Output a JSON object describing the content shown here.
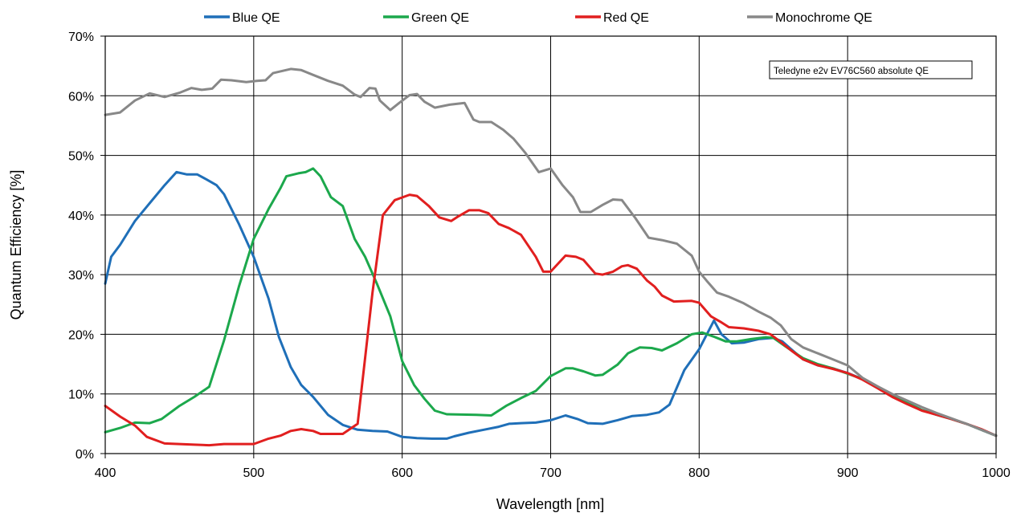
{
  "chart_data": {
    "type": "line",
    "xlabel": "Wavelength [nm]",
    "ylabel": "Quantum Efficiency [%]",
    "xlim": [
      400,
      1000
    ],
    "ylim": [
      0,
      70
    ],
    "x_ticks": [
      400,
      500,
      600,
      700,
      800,
      900,
      1000
    ],
    "y_ticks": [
      0,
      10,
      20,
      30,
      40,
      50,
      60,
      70
    ],
    "y_tick_labels": [
      "0%",
      "10%",
      "20%",
      "30%",
      "40%",
      "50%",
      "60%",
      "70%"
    ],
    "grid": true,
    "legend_position": "top",
    "annotation": "Teledyne e2v EV76C560 absolute QE",
    "series": [
      {
        "name": "Blue QE",
        "color": "#1f6fb8",
        "points": [
          [
            400,
            28.5
          ],
          [
            404,
            33
          ],
          [
            410,
            35
          ],
          [
            420,
            39
          ],
          [
            430,
            42
          ],
          [
            440,
            45
          ],
          [
            448,
            47.2
          ],
          [
            455,
            46.8
          ],
          [
            462,
            46.8
          ],
          [
            468,
            46
          ],
          [
            475,
            45
          ],
          [
            480,
            43.5
          ],
          [
            490,
            38.5
          ],
          [
            500,
            33
          ],
          [
            510,
            26
          ],
          [
            517,
            19.5
          ],
          [
            525,
            14.5
          ],
          [
            532,
            11.5
          ],
          [
            540,
            9.5
          ],
          [
            550,
            6.5
          ],
          [
            560,
            4.8
          ],
          [
            570,
            4
          ],
          [
            580,
            3.8
          ],
          [
            590,
            3.7
          ],
          [
            600,
            2.8
          ],
          [
            610,
            2.6
          ],
          [
            620,
            2.5
          ],
          [
            630,
            2.5
          ],
          [
            635,
            2.9
          ],
          [
            645,
            3.5
          ],
          [
            655,
            4
          ],
          [
            665,
            4.5
          ],
          [
            672,
            5
          ],
          [
            680,
            5.1
          ],
          [
            690,
            5.2
          ],
          [
            700,
            5.6
          ],
          [
            710,
            6.4
          ],
          [
            718,
            5.8
          ],
          [
            725,
            5.1
          ],
          [
            735,
            5
          ],
          [
            745,
            5.6
          ],
          [
            755,
            6.3
          ],
          [
            765,
            6.5
          ],
          [
            773,
            6.9
          ],
          [
            780,
            8.2
          ],
          [
            790,
            14
          ],
          [
            800,
            17.5
          ],
          [
            810,
            22.3
          ],
          [
            815,
            20
          ],
          [
            822,
            18.5
          ],
          [
            830,
            18.6
          ],
          [
            840,
            19.2
          ],
          [
            850,
            19.4
          ],
          [
            856,
            18.8
          ],
          [
            862,
            17.5
          ],
          [
            870,
            15.8
          ],
          [
            880,
            14.8
          ],
          [
            890,
            14.3
          ],
          [
            900,
            13.5
          ],
          [
            910,
            12.5
          ],
          [
            920,
            11.2
          ],
          [
            930,
            9.8
          ],
          [
            940,
            8.5
          ],
          [
            950,
            7.3
          ],
          [
            960,
            6.5
          ],
          [
            970,
            5.8
          ],
          [
            980,
            5
          ],
          [
            990,
            4
          ],
          [
            1000,
            3
          ]
        ]
      },
      {
        "name": "Green QE",
        "color": "#1ca84c",
        "points": [
          [
            400,
            3.6
          ],
          [
            410,
            4.3
          ],
          [
            420,
            5.2
          ],
          [
            430,
            5.1
          ],
          [
            438,
            5.8
          ],
          [
            450,
            8
          ],
          [
            460,
            9.5
          ],
          [
            470,
            11.2
          ],
          [
            480,
            19
          ],
          [
            490,
            28
          ],
          [
            500,
            36
          ],
          [
            510,
            41
          ],
          [
            518,
            44.5
          ],
          [
            522,
            46.5
          ],
          [
            530,
            47
          ],
          [
            535,
            47.2
          ],
          [
            540,
            47.8
          ],
          [
            545,
            46.5
          ],
          [
            552,
            43
          ],
          [
            560,
            41.5
          ],
          [
            568,
            36
          ],
          [
            575,
            33
          ],
          [
            583,
            28.5
          ],
          [
            592,
            23
          ],
          [
            600,
            15.5
          ],
          [
            608,
            11.5
          ],
          [
            615,
            9.2
          ],
          [
            622,
            7.2
          ],
          [
            630,
            6.6
          ],
          [
            650,
            6.5
          ],
          [
            660,
            6.4
          ],
          [
            670,
            8
          ],
          [
            680,
            9.3
          ],
          [
            690,
            10.5
          ],
          [
            700,
            13
          ],
          [
            710,
            14.3
          ],
          [
            715,
            14.3
          ],
          [
            722,
            13.8
          ],
          [
            730,
            13.1
          ],
          [
            735,
            13.2
          ],
          [
            745,
            14.9
          ],
          [
            752,
            16.8
          ],
          [
            760,
            17.8
          ],
          [
            768,
            17.7
          ],
          [
            775,
            17.3
          ],
          [
            785,
            18.5
          ],
          [
            795,
            20
          ],
          [
            802,
            20.3
          ],
          [
            810,
            19.6
          ],
          [
            818,
            18.8
          ],
          [
            825,
            18.8
          ],
          [
            835,
            19.2
          ],
          [
            845,
            19.5
          ],
          [
            850,
            19.4
          ],
          [
            858,
            18
          ],
          [
            865,
            16.8
          ],
          [
            870,
            16
          ],
          [
            880,
            15
          ],
          [
            890,
            14.3
          ],
          [
            900,
            13.4
          ],
          [
            910,
            12.5
          ],
          [
            920,
            11.2
          ],
          [
            930,
            9.8
          ],
          [
            940,
            8.5
          ],
          [
            950,
            7.3
          ],
          [
            960,
            6.5
          ],
          [
            970,
            5.8
          ],
          [
            980,
            5
          ],
          [
            990,
            4
          ],
          [
            1000,
            3
          ]
        ]
      },
      {
        "name": "Red QE",
        "color": "#e11f1f",
        "points": [
          [
            400,
            8
          ],
          [
            410,
            6.2
          ],
          [
            420,
            4.7
          ],
          [
            428,
            2.8
          ],
          [
            440,
            1.7
          ],
          [
            450,
            1.6
          ],
          [
            460,
            1.5
          ],
          [
            470,
            1.4
          ],
          [
            480,
            1.6
          ],
          [
            490,
            1.6
          ],
          [
            500,
            1.6
          ],
          [
            510,
            2.5
          ],
          [
            518,
            3
          ],
          [
            525,
            3.8
          ],
          [
            532,
            4.1
          ],
          [
            540,
            3.8
          ],
          [
            545,
            3.3
          ],
          [
            555,
            3.3
          ],
          [
            560,
            3.3
          ],
          [
            570,
            5
          ],
          [
            575,
            16
          ],
          [
            580,
            27
          ],
          [
            587,
            40
          ],
          [
            595,
            42.5
          ],
          [
            605,
            43.4
          ],
          [
            610,
            43.2
          ],
          [
            618,
            41.5
          ],
          [
            625,
            39.6
          ],
          [
            633,
            39
          ],
          [
            638,
            39.8
          ],
          [
            645,
            40.8
          ],
          [
            652,
            40.8
          ],
          [
            658,
            40.3
          ],
          [
            665,
            38.5
          ],
          [
            672,
            37.8
          ],
          [
            680,
            36.7
          ],
          [
            690,
            33
          ],
          [
            695,
            30.5
          ],
          [
            700,
            30.5
          ],
          [
            710,
            33.2
          ],
          [
            717,
            33
          ],
          [
            722,
            32.5
          ],
          [
            730,
            30.2
          ],
          [
            735,
            30
          ],
          [
            742,
            30.5
          ],
          [
            748,
            31.4
          ],
          [
            752,
            31.6
          ],
          [
            758,
            31
          ],
          [
            765,
            29
          ],
          [
            770,
            28
          ],
          [
            775,
            26.5
          ],
          [
            783,
            25.5
          ],
          [
            795,
            25.6
          ],
          [
            800,
            25.3
          ],
          [
            808,
            23
          ],
          [
            815,
            22
          ],
          [
            820,
            21.2
          ],
          [
            830,
            21
          ],
          [
            840,
            20.6
          ],
          [
            848,
            20
          ],
          [
            855,
            18.7
          ],
          [
            862,
            17.3
          ],
          [
            870,
            15.8
          ],
          [
            880,
            14.8
          ],
          [
            890,
            14.2
          ],
          [
            900,
            13.5
          ],
          [
            910,
            12.4
          ],
          [
            920,
            11
          ],
          [
            930,
            9.5
          ],
          [
            940,
            8.3
          ],
          [
            950,
            7.2
          ],
          [
            960,
            6.5
          ],
          [
            970,
            5.8
          ],
          [
            980,
            5
          ],
          [
            990,
            4.1
          ],
          [
            1000,
            3
          ]
        ]
      },
      {
        "name": "Monochrome QE",
        "color": "#888888",
        "points": [
          [
            400,
            56.8
          ],
          [
            410,
            57.2
          ],
          [
            420,
            59.2
          ],
          [
            430,
            60.4
          ],
          [
            440,
            59.8
          ],
          [
            450,
            60.5
          ],
          [
            458,
            61.3
          ],
          [
            465,
            61
          ],
          [
            472,
            61.2
          ],
          [
            478,
            62.7
          ],
          [
            485,
            62.6
          ],
          [
            495,
            62.3
          ],
          [
            502,
            62.5
          ],
          [
            508,
            62.6
          ],
          [
            513,
            63.8
          ],
          [
            520,
            64.2
          ],
          [
            525,
            64.5
          ],
          [
            532,
            64.3
          ],
          [
            540,
            63.5
          ],
          [
            550,
            62.5
          ],
          [
            560,
            61.7
          ],
          [
            568,
            60.2
          ],
          [
            572,
            59.8
          ],
          [
            578,
            61.3
          ],
          [
            582,
            61.2
          ],
          [
            585,
            59.2
          ],
          [
            592,
            57.6
          ],
          [
            598,
            58.8
          ],
          [
            605,
            60.1
          ],
          [
            610,
            60.3
          ],
          [
            615,
            59
          ],
          [
            622,
            58
          ],
          [
            632,
            58.5
          ],
          [
            642,
            58.8
          ],
          [
            648,
            56
          ],
          [
            652,
            55.6
          ],
          [
            660,
            55.6
          ],
          [
            668,
            54.3
          ],
          [
            675,
            52.8
          ],
          [
            683,
            50.4
          ],
          [
            692,
            47.2
          ],
          [
            700,
            47.8
          ],
          [
            708,
            45
          ],
          [
            715,
            43
          ],
          [
            720,
            40.5
          ],
          [
            727,
            40.5
          ],
          [
            735,
            41.7
          ],
          [
            742,
            42.6
          ],
          [
            748,
            42.5
          ],
          [
            757,
            39.5
          ],
          [
            766,
            36.2
          ],
          [
            775,
            35.8
          ],
          [
            785,
            35.2
          ],
          [
            795,
            33.2
          ],
          [
            800,
            30.5
          ],
          [
            805,
            29
          ],
          [
            812,
            27
          ],
          [
            820,
            26.3
          ],
          [
            830,
            25.2
          ],
          [
            840,
            23.8
          ],
          [
            848,
            22.8
          ],
          [
            855,
            21.5
          ],
          [
            862,
            19.2
          ],
          [
            870,
            17.8
          ],
          [
            880,
            16.8
          ],
          [
            890,
            15.8
          ],
          [
            900,
            14.8
          ],
          [
            910,
            12.7
          ],
          [
            920,
            11.3
          ],
          [
            930,
            10
          ],
          [
            940,
            8.9
          ],
          [
            950,
            7.8
          ],
          [
            960,
            6.8
          ],
          [
            970,
            5.9
          ],
          [
            980,
            5
          ],
          [
            990,
            4
          ],
          [
            1000,
            3
          ]
        ]
      }
    ]
  }
}
